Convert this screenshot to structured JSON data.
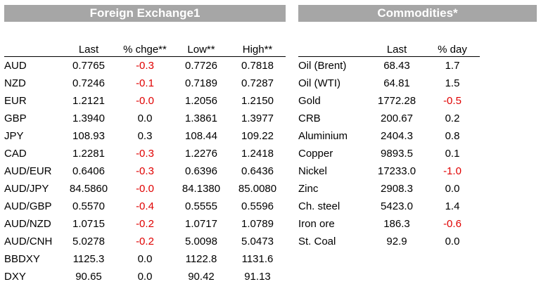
{
  "fx": {
    "title": "Foreign Exchange1",
    "headers": [
      "",
      "Last",
      "% chge**",
      "Low**",
      "High**"
    ],
    "rows": [
      {
        "name": "AUD",
        "last": "0.7765",
        "chg": "-0.3",
        "low": "0.7726",
        "high": "0.7818"
      },
      {
        "name": "NZD",
        "last": "0.7246",
        "chg": "-0.1",
        "low": "0.7189",
        "high": "0.7287"
      },
      {
        "name": "EUR",
        "last": "1.2121",
        "chg": "-0.0",
        "low": "1.2056",
        "high": "1.2150"
      },
      {
        "name": "GBP",
        "last": "1.3940",
        "chg": "0.0",
        "low": "1.3861",
        "high": "1.3977"
      },
      {
        "name": "JPY",
        "last": "108.93",
        "chg": "0.3",
        "low": "108.44",
        "high": "109.22"
      },
      {
        "name": "CAD",
        "last": "1.2281",
        "chg": "-0.3",
        "low": "1.2276",
        "high": "1.2418"
      },
      {
        "name": "AUD/EUR",
        "last": "0.6406",
        "chg": "-0.3",
        "low": "0.6396",
        "high": "0.6436"
      },
      {
        "name": "AUD/JPY",
        "last": "84.5860",
        "chg": "-0.0",
        "low": "84.1380",
        "high": "85.0080"
      },
      {
        "name": "AUD/GBP",
        "last": "0.5570",
        "chg": "-0.4",
        "low": "0.5555",
        "high": "0.5596"
      },
      {
        "name": "AUD/NZD",
        "last": "1.0715",
        "chg": "-0.2",
        "low": "1.0717",
        "high": "1.0789"
      },
      {
        "name": "AUD/CNH",
        "last": "5.0278",
        "chg": "-0.2",
        "low": "5.0098",
        "high": "5.0473"
      },
      {
        "name": "BBDXY",
        "last": "1125.3",
        "chg": "0.0",
        "low": "1122.8",
        "high": "1131.6"
      },
      {
        "name": "DXY",
        "last": "90.65",
        "chg": "0.0",
        "low": "90.42",
        "high": "91.13"
      }
    ]
  },
  "commodities": {
    "title": "Commodities*",
    "headers": [
      "",
      "Last",
      "% day"
    ],
    "rows": [
      {
        "name": "Oil (Brent)",
        "last": "68.43",
        "chg": "1.7"
      },
      {
        "name": "Oil (WTI)",
        "last": "64.81",
        "chg": "1.5"
      },
      {
        "name": "Gold",
        "last": "1772.28",
        "chg": "-0.5"
      },
      {
        "name": "CRB",
        "last": "200.67",
        "chg": "0.2"
      },
      {
        "name": "Aluminium",
        "last": "2404.3",
        "chg": "0.8"
      },
      {
        "name": "Copper",
        "last": "9893.5",
        "chg": "0.1"
      },
      {
        "name": "Nickel",
        "last": "17233.0",
        "chg": "-1.0"
      },
      {
        "name": "Zinc",
        "last": "2908.3",
        "chg": "0.0"
      },
      {
        "name": "Ch. steel",
        "last": "5423.0",
        "chg": "1.4"
      },
      {
        "name": "Iron ore",
        "last": "186.3",
        "chg": "-0.6"
      },
      {
        "name": "St. Coal",
        "last": "92.9",
        "chg": "0.0"
      }
    ]
  },
  "colors": {
    "banner": "#a6a6a6",
    "negative": "#e00000"
  }
}
